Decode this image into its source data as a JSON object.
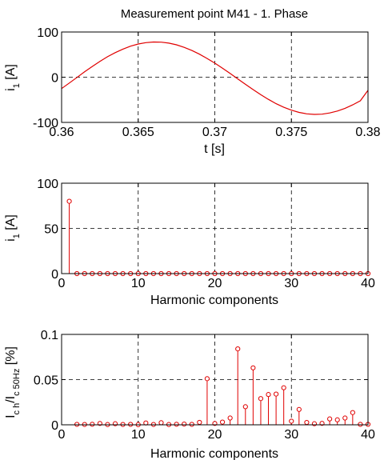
{
  "colors": {
    "series": "#e00000",
    "axis": "#000000",
    "background": "#ffffff"
  },
  "chart_data": [
    {
      "type": "line",
      "title": "Measurement point M41  - 1. Phase",
      "xlabel": "t [s]",
      "ylabel": "i",
      "ylabel_sub": "1",
      "ylabel_unit": " [A]",
      "xlim": [
        0.36,
        0.38
      ],
      "ylim": [
        -100,
        100
      ],
      "xticks": [
        "0.36",
        "0.365",
        "0.37",
        "0.375",
        "0.38"
      ],
      "yticks": [
        "-100",
        "0",
        "100"
      ],
      "grid": true,
      "series": [
        {
          "x": [
            0.36,
            0.3605,
            0.361,
            0.3615,
            0.362,
            0.3625,
            0.363,
            0.3635,
            0.364,
            0.3645,
            0.365,
            0.3655,
            0.366,
            0.3665,
            0.367,
            0.3675,
            0.368,
            0.3685,
            0.369,
            0.3695,
            0.37,
            0.3705,
            0.371,
            0.3715,
            0.372,
            0.3725,
            0.373,
            0.3735,
            0.374,
            0.3745,
            0.375,
            0.3755,
            0.376,
            0.3765,
            0.377,
            0.3775,
            0.378,
            0.3785,
            0.379,
            0.3795,
            0.38
          ],
          "y": [
            -25.2,
            -13.0,
            -0.6,
            11.9,
            23.8,
            35.0,
            45.3,
            54.4,
            62.2,
            68.6,
            73.4,
            76.5,
            77.9,
            77.5,
            75.4,
            71.6,
            66.1,
            59.2,
            50.9,
            41.5,
            31.1,
            20.0,
            8.3,
            -3.7,
            -15.8,
            -27.5,
            -38.7,
            -49.1,
            -58.5,
            -66.5,
            -73.0,
            -77.9,
            -81.1,
            -82.3,
            -81.7,
            -79.2,
            -74.9,
            -68.9,
            -61.3,
            -52.3,
            -29.0
          ]
        }
      ]
    },
    {
      "type": "stem",
      "xlabel": "Harmonic components",
      "ylabel": "i",
      "ylabel_sub": "1",
      "ylabel_unit": " [A]",
      "xlim": [
        0,
        40
      ],
      "ylim": [
        0,
        100
      ],
      "xticks": [
        "0",
        "10",
        "20",
        "30",
        "40"
      ],
      "yticks": [
        "0",
        "50",
        "100"
      ],
      "grid": true,
      "x": [
        1,
        2,
        3,
        4,
        5,
        6,
        7,
        8,
        9,
        10,
        11,
        12,
        13,
        14,
        15,
        16,
        17,
        18,
        19,
        20,
        21,
        22,
        23,
        24,
        25,
        26,
        27,
        28,
        29,
        30,
        31,
        32,
        33,
        34,
        35,
        36,
        37,
        38,
        39,
        40
      ],
      "values": [
        80,
        0,
        0,
        0,
        0,
        0,
        0,
        0,
        0,
        0,
        0,
        0,
        0,
        0,
        0,
        0,
        0,
        0,
        0,
        0,
        0,
        0,
        0,
        0,
        0,
        0,
        0,
        0,
        0,
        0,
        0,
        0,
        0,
        0,
        0,
        0,
        0,
        0,
        0,
        0
      ]
    },
    {
      "type": "stem",
      "xlabel": "Harmonic components",
      "ylabel": "I",
      "ylabel_sub": "c h",
      "ylabel_mid": "/I",
      "ylabel_sub2": "c 50Hz",
      "ylabel_unit": " [%]",
      "xlim": [
        0,
        40
      ],
      "ylim": [
        0,
        0.1
      ],
      "xticks": [
        "0",
        "10",
        "20",
        "30",
        "40"
      ],
      "yticks": [
        "0",
        "0.05",
        "0.1"
      ],
      "grid": true,
      "x": [
        2,
        3,
        4,
        5,
        6,
        7,
        8,
        9,
        10,
        11,
        12,
        13,
        14,
        15,
        16,
        17,
        18,
        19,
        20,
        21,
        22,
        23,
        24,
        25,
        26,
        27,
        28,
        29,
        30,
        31,
        32,
        33,
        34,
        35,
        36,
        37,
        38,
        39,
        40
      ],
      "values": [
        0.0005,
        0.0004,
        0.0006,
        0.0015,
        0.0003,
        0.0012,
        0.0004,
        0.0005,
        0.0002,
        0.002,
        0.0004,
        0.0023,
        0.0003,
        0.0006,
        0.0008,
        0.0005,
        0.0027,
        0.051,
        0.0015,
        0.003,
        0.0075,
        0.084,
        0.02,
        0.063,
        0.029,
        0.0335,
        0.034,
        0.041,
        0.004,
        0.017,
        0.0026,
        0.0012,
        0.0016,
        0.0065,
        0.0055,
        0.0075,
        0.0135,
        0.0005,
        0.0005
      ]
    }
  ]
}
